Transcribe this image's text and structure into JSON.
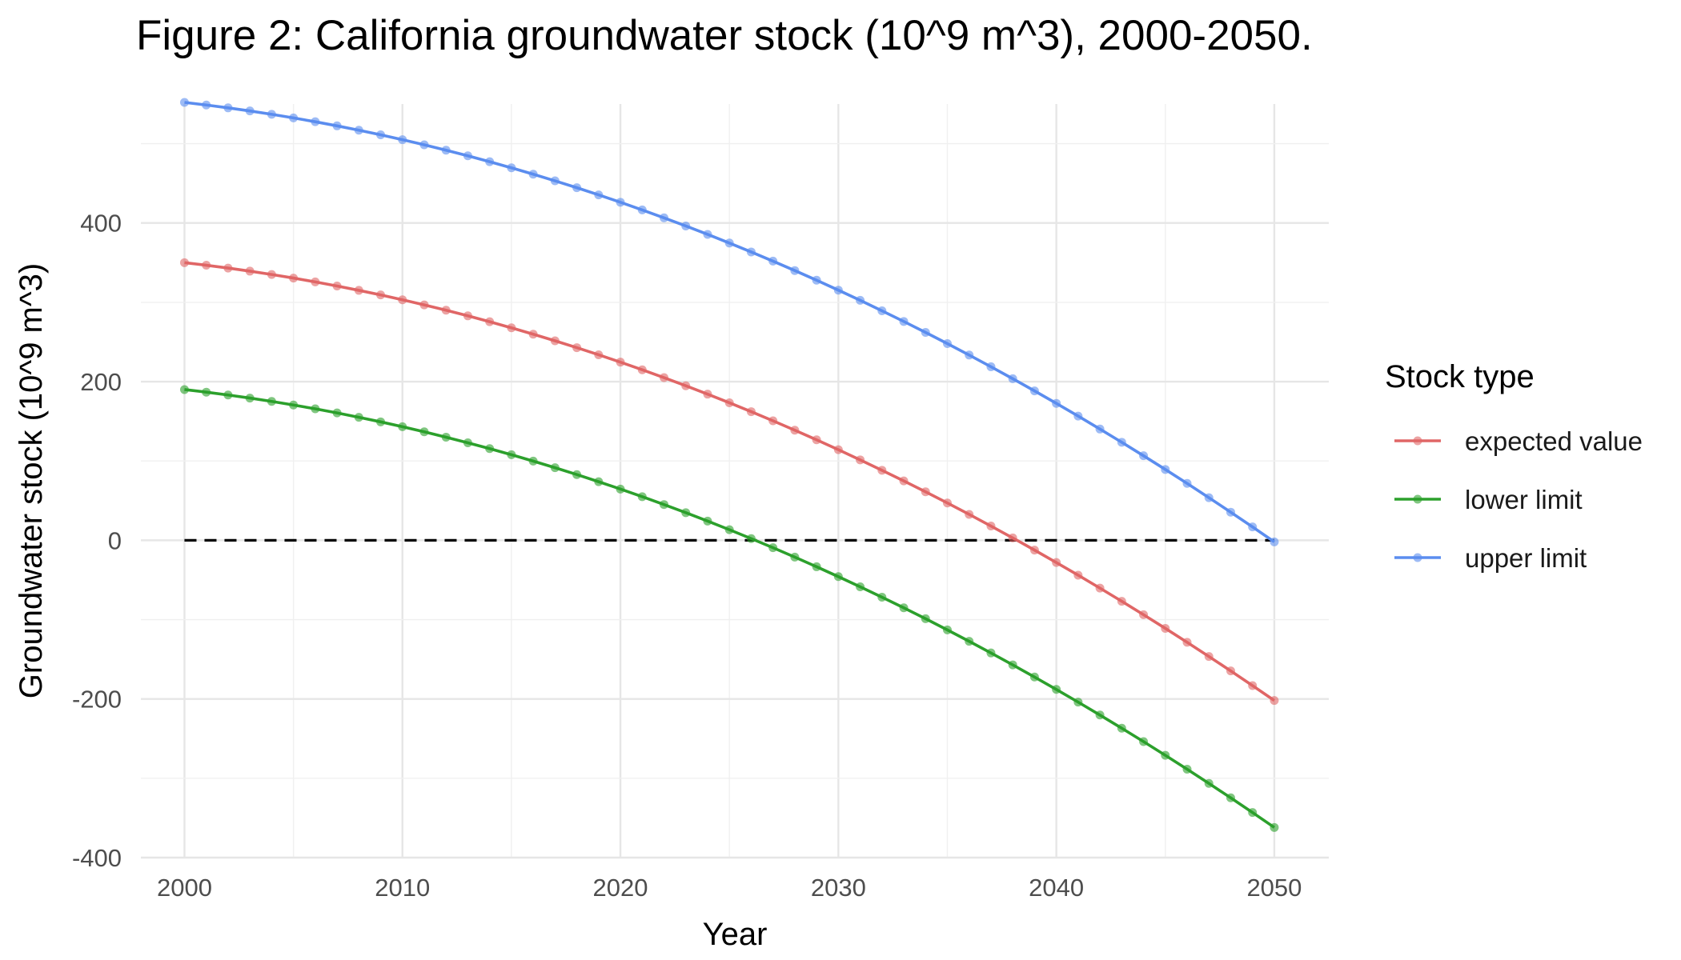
{
  "chart_data": {
    "type": "line",
    "title": "Figure 2: California groundwater stock (10^9 m^3), 2000-2050.",
    "xlabel": "Year",
    "ylabel": "Groundwater stock (10^9 m^3)",
    "xlim": [
      1998,
      2052.5
    ],
    "ylim": [
      -400,
      550
    ],
    "x_ticks": [
      2000,
      2010,
      2020,
      2030,
      2040,
      2050
    ],
    "x_tick_labels": [
      "2000",
      "2010",
      "2020",
      "2030",
      "2040",
      "2050"
    ],
    "y_ticks": [
      -400,
      -200,
      0,
      200,
      400
    ],
    "y_tick_labels": [
      "-400",
      "-200",
      "0",
      "200",
      "400"
    ],
    "grid": true,
    "legend_title": "Stock type",
    "legend_position": "right",
    "reference_line": {
      "y": 0,
      "x_from": 2000,
      "x_to": 2050,
      "style": "dashed",
      "color": "#000000"
    },
    "x_start": 2000,
    "x_end": 2050,
    "series": [
      {
        "name": "expected value",
        "color": "#e06666",
        "start": 350,
        "end": -202,
        "curvature": 0.72
      },
      {
        "name": "lower limit",
        "color": "#2ca02c",
        "start": 190,
        "end": -362,
        "curvature": 0.72
      },
      {
        "name": "upper limit",
        "color": "#5b8def",
        "start": 552,
        "end": -2,
        "curvature": 0.72
      }
    ]
  }
}
